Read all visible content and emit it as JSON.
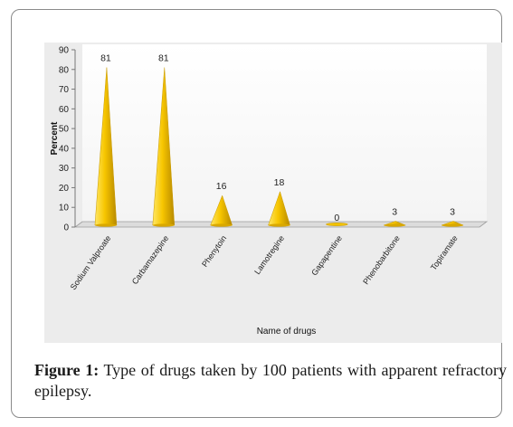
{
  "chart_data": {
    "type": "bar",
    "bar_shape": "cone",
    "categories": [
      "Sodium Valproate",
      "Carbamazepine",
      "Phenytoin",
      "Lamotregine",
      "Gapapentine",
      "Phenobarbitone",
      "Topiramate"
    ],
    "values": [
      81,
      81,
      16,
      18,
      0,
      3,
      3
    ],
    "data_labels": [
      "81",
      "81",
      "16",
      "18",
      "0",
      "3",
      "3"
    ],
    "ylim": [
      0,
      90
    ],
    "yticks": [
      0,
      10,
      20,
      30,
      40,
      50,
      60,
      70,
      80,
      90
    ],
    "xlabel": "Name of drugs",
    "ylabel": "Percent",
    "grid": false,
    "legend": "none",
    "colors": {
      "bar_light": "#ffe14d",
      "bar_mid": "#f5c400",
      "bar_dark": "#b88a00",
      "plot_bg": "#ffffff",
      "panel_bg": "#ececec"
    }
  },
  "caption": {
    "label": "Figure 1:",
    "text": " Type of drugs taken by 100 patients with apparent refractory epilepsy."
  }
}
